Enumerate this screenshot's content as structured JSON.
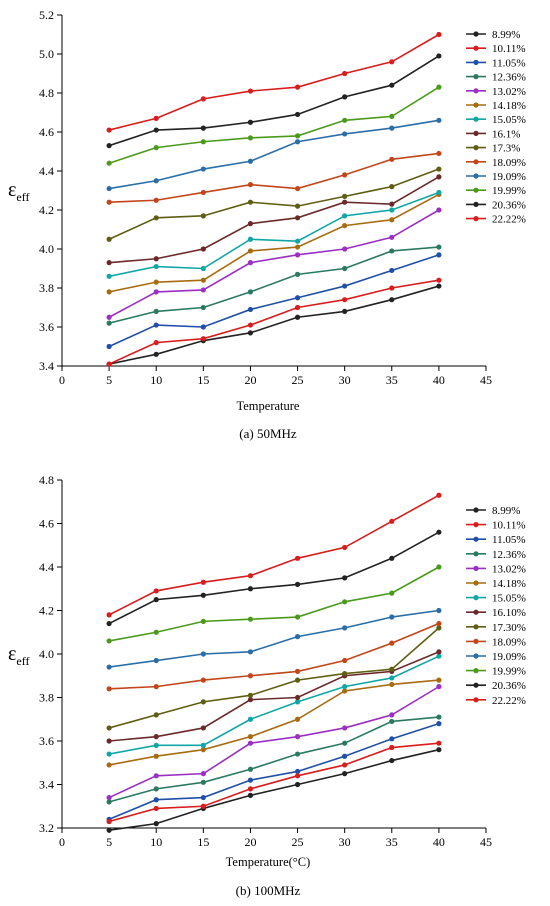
{
  "chart_data": [
    {
      "type": "line",
      "caption": "(a) 50MHz",
      "xlabel": "Temperature",
      "ylabel_main": "ε",
      "ylabel_sub": "eff",
      "xlim": [
        0,
        45
      ],
      "ylim": [
        3.4,
        5.2
      ],
      "xticks": [
        0,
        5,
        10,
        15,
        20,
        25,
        30,
        35,
        40,
        45
      ],
      "xtick_labels": [
        "0",
        "5",
        "10",
        "15",
        "20",
        "25",
        "30",
        "35",
        "40",
        "45"
      ],
      "yticks": [
        3.4,
        3.6,
        3.8,
        4.0,
        4.2,
        4.4,
        4.6,
        4.8,
        5.0,
        5.2
      ],
      "ytick_labels": [
        "3.4",
        "3.6",
        "3.8",
        "4.0",
        "4.2",
        "4.4",
        "4.6",
        "4.8",
        "5.0",
        "5.2"
      ],
      "grid": false,
      "legend_position": "right",
      "x": [
        5,
        10,
        15,
        20,
        25,
        30,
        35,
        40
      ],
      "series": [
        {
          "name": "8.99%",
          "color": "#222222",
          "values": [
            4.53,
            4.61,
            4.62,
            4.65,
            4.69,
            4.78,
            4.84,
            4.99
          ]
        },
        {
          "name": "10.11%",
          "color": "#d91c1c",
          "values": [
            4.61,
            4.67,
            4.77,
            4.81,
            4.83,
            4.9,
            4.96,
            5.1
          ]
        },
        {
          "name": "11.05%",
          "color": "#1f4fa8",
          "values": [
            3.5,
            3.61,
            3.6,
            3.69,
            3.75,
            3.81,
            3.89,
            3.97
          ]
        },
        {
          "name": "12.36%",
          "color": "#2b7a5f",
          "values": [
            3.62,
            3.68,
            3.7,
            3.78,
            3.87,
            3.9,
            3.99,
            4.01
          ]
        },
        {
          "name": "13.02%",
          "color": "#9b2fc4",
          "values": [
            3.65,
            3.78,
            3.79,
            3.93,
            3.97,
            4.0,
            4.06,
            4.2
          ]
        },
        {
          "name": "14.18%",
          "color": "#a86c10",
          "values": [
            3.78,
            3.83,
            3.84,
            3.99,
            4.01,
            4.12,
            4.15,
            4.28
          ]
        },
        {
          "name": "15.05%",
          "color": "#10a6a6",
          "values": [
            3.86,
            3.91,
            3.9,
            4.05,
            4.04,
            4.17,
            4.2,
            4.29
          ]
        },
        {
          "name": "16.1%",
          "color": "#6b2a2a",
          "values": [
            3.93,
            3.95,
            4.0,
            4.13,
            4.16,
            4.24,
            4.23,
            4.37
          ]
        },
        {
          "name": "17.3%",
          "color": "#5e5e12",
          "values": [
            4.05,
            4.16,
            4.17,
            4.24,
            4.22,
            4.27,
            4.32,
            4.41
          ]
        },
        {
          "name": "18.09%",
          "color": "#c2461a",
          "values": [
            4.24,
            4.25,
            4.29,
            4.33,
            4.31,
            4.38,
            4.46,
            4.49
          ]
        },
        {
          "name": "19.09%",
          "color": "#2a6ea8",
          "values": [
            4.31,
            4.35,
            4.41,
            4.45,
            4.55,
            4.59,
            4.62,
            4.66
          ]
        },
        {
          "name": "19.99%",
          "color": "#4c9a1c",
          "values": [
            4.44,
            4.52,
            4.55,
            4.57,
            4.58,
            4.66,
            4.68,
            4.83
          ]
        },
        {
          "name": "20.36%",
          "color": "#222222",
          "values": [
            3.41,
            3.46,
            3.53,
            3.57,
            3.65,
            3.68,
            3.74,
            3.81
          ]
        },
        {
          "name": "22.22%",
          "color": "#d91c1c",
          "values": [
            3.41,
            3.52,
            3.54,
            3.61,
            3.7,
            3.74,
            3.8,
            3.84
          ]
        }
      ]
    },
    {
      "type": "line",
      "caption": "(b) 100MHz",
      "xlabel": "Temperature(°C)",
      "ylabel_main": "ε",
      "ylabel_sub": "eff",
      "xlim": [
        0,
        45
      ],
      "ylim": [
        3.2,
        4.8
      ],
      "xticks": [
        0,
        5,
        10,
        15,
        20,
        25,
        30,
        35,
        40,
        45
      ],
      "xtick_labels": [
        "0",
        "5",
        "10",
        "15",
        "20",
        "25",
        "30",
        "35",
        "40",
        "45"
      ],
      "yticks": [
        3.2,
        3.4,
        3.6,
        3.8,
        4.0,
        4.2,
        4.4,
        4.6,
        4.8
      ],
      "ytick_labels": [
        "3.2",
        "3.4",
        "3.6",
        "3.8",
        "4.0",
        "4.2",
        "4.4",
        "4.6",
        "4.8"
      ],
      "grid": false,
      "legend_position": "right",
      "x": [
        5,
        10,
        15,
        20,
        25,
        30,
        35,
        40
      ],
      "series": [
        {
          "name": "8.99%",
          "color": "#222222",
          "values": [
            4.14,
            4.25,
            4.27,
            4.3,
            4.32,
            4.35,
            4.44,
            4.56
          ]
        },
        {
          "name": "10.11%",
          "color": "#d91c1c",
          "values": [
            4.18,
            4.29,
            4.33,
            4.36,
            4.44,
            4.49,
            4.61,
            4.73
          ]
        },
        {
          "name": "11.05%",
          "color": "#1f4fa8",
          "values": [
            3.24,
            3.33,
            3.34,
            3.42,
            3.46,
            3.53,
            3.61,
            3.68
          ]
        },
        {
          "name": "12.36%",
          "color": "#2b7a5f",
          "values": [
            3.32,
            3.38,
            3.41,
            3.47,
            3.54,
            3.59,
            3.69,
            3.71
          ]
        },
        {
          "name": "13.02%",
          "color": "#9b2fc4",
          "values": [
            3.34,
            3.44,
            3.45,
            3.59,
            3.62,
            3.66,
            3.72,
            3.85
          ]
        },
        {
          "name": "14.18%",
          "color": "#a86c10",
          "values": [
            3.49,
            3.53,
            3.56,
            3.62,
            3.7,
            3.83,
            3.86,
            3.88
          ]
        },
        {
          "name": "15.05%",
          "color": "#10a6a6",
          "values": [
            3.54,
            3.58,
            3.58,
            3.7,
            3.78,
            3.85,
            3.89,
            3.99
          ]
        },
        {
          "name": "16.10%",
          "color": "#6b2a2a",
          "values": [
            3.6,
            3.62,
            3.66,
            3.79,
            3.8,
            3.9,
            3.92,
            4.01
          ]
        },
        {
          "name": "17.30%",
          "color": "#5e5e12",
          "values": [
            3.66,
            3.72,
            3.78,
            3.81,
            3.88,
            3.91,
            3.93,
            4.12
          ]
        },
        {
          "name": "18.09%",
          "color": "#c2461a",
          "values": [
            3.84,
            3.85,
            3.88,
            3.9,
            3.92,
            3.97,
            4.05,
            4.14
          ]
        },
        {
          "name": "19.09%",
          "color": "#2a6ea8",
          "values": [
            3.94,
            3.97,
            4.0,
            4.01,
            4.08,
            4.12,
            4.17,
            4.2
          ]
        },
        {
          "name": "19.99%",
          "color": "#4c9a1c",
          "values": [
            4.06,
            4.1,
            4.15,
            4.16,
            4.17,
            4.24,
            4.28,
            4.4
          ]
        },
        {
          "name": "20.36%",
          "color": "#222222",
          "values": [
            3.19,
            3.22,
            3.29,
            3.35,
            3.4,
            3.45,
            3.51,
            3.56
          ]
        },
        {
          "name": "22.22%",
          "color": "#d91c1c",
          "values": [
            3.23,
            3.29,
            3.3,
            3.38,
            3.44,
            3.49,
            3.57,
            3.59
          ]
        }
      ]
    }
  ]
}
